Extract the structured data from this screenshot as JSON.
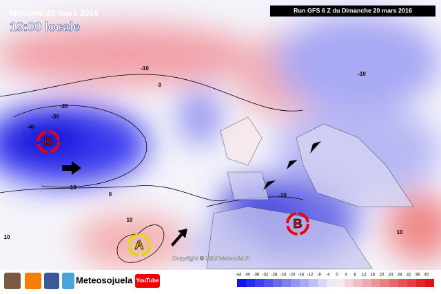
{
  "header": {
    "date": "Mercredi 23 mars 2016",
    "time": "19:00 locale",
    "run": "Run GFS 6 Z du Dimanche 20 mars 2016"
  },
  "contour_labels": [
    "-10",
    "0",
    "-20",
    "-30",
    "-40",
    "-10",
    "0",
    "10",
    "-10",
    "-10",
    "10",
    "10"
  ],
  "pressure_centers": [
    "B",
    "B",
    "A"
  ],
  "copyright": "Copyright © 2015 Meteociel.fr",
  "footer": {
    "brand": "Meteosojuela",
    "youtube": "YouTube"
  },
  "colorbar": [
    "-44",
    "-40",
    "-36",
    "-32",
    "-28",
    "-24",
    "-20",
    "-16",
    "-12",
    "-8",
    "-4",
    "0",
    "4",
    "8",
    "12",
    "16",
    "20",
    "24",
    "28",
    "32",
    "36",
    "40"
  ]
}
